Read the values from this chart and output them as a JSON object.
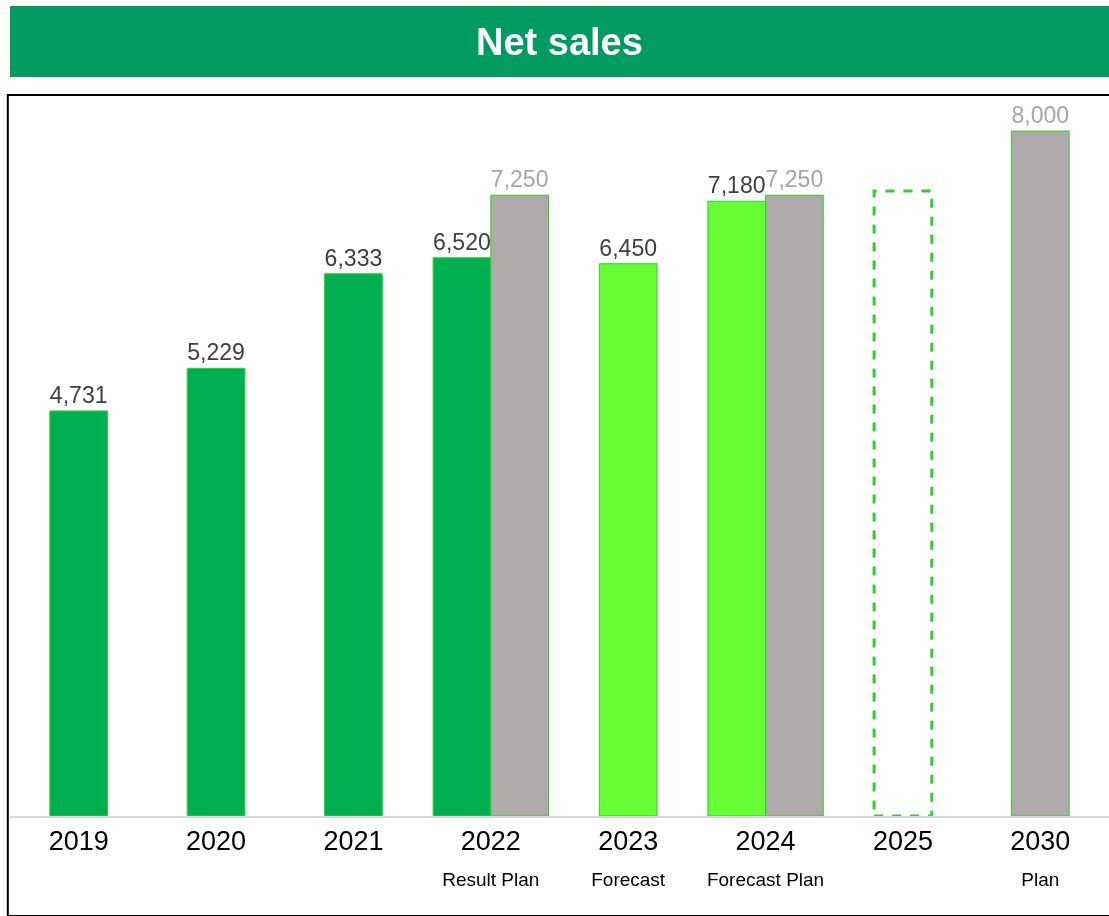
{
  "chart_data": {
    "type": "bar",
    "title": "Net sales",
    "categories": [
      "2019",
      "2020",
      "2021",
      "2022\nResult Plan",
      "2023\nForecast",
      "2024\nForecast Plan",
      "2025",
      "2030\nPlan"
    ],
    "series": [
      {
        "color": "#00b050",
        "values": [
          4731,
          5229,
          6333,
          6520,
          null,
          null,
          null,
          null
        ],
        "value_labels": [
          "4,731",
          "5,229",
          "6,333",
          "6,520",
          null,
          null,
          null,
          null
        ]
      },
      {
        "color": "#66ff33",
        "values": [
          null,
          null,
          null,
          null,
          6450,
          7180,
          null,
          null
        ],
        "value_labels": [
          null,
          null,
          null,
          null,
          "6,450",
          "7,180",
          null,
          null
        ]
      },
      {
        "color": "#aeaaaa",
        "values": [
          null,
          null,
          null,
          7250,
          null,
          7250,
          null,
          8000
        ],
        "value_labels": [
          null,
          null,
          null,
          "7,250",
          null,
          "7,250",
          null,
          "8,000"
        ]
      },
      {
        "color": "#33cc33",
        "line_style": "dashed",
        "values": [
          null,
          null,
          null,
          null,
          null,
          null,
          7300,
          null
        ],
        "value_labels": [
          null,
          null,
          null,
          null,
          null,
          null,
          null,
          null
        ]
      }
    ]
  }
}
